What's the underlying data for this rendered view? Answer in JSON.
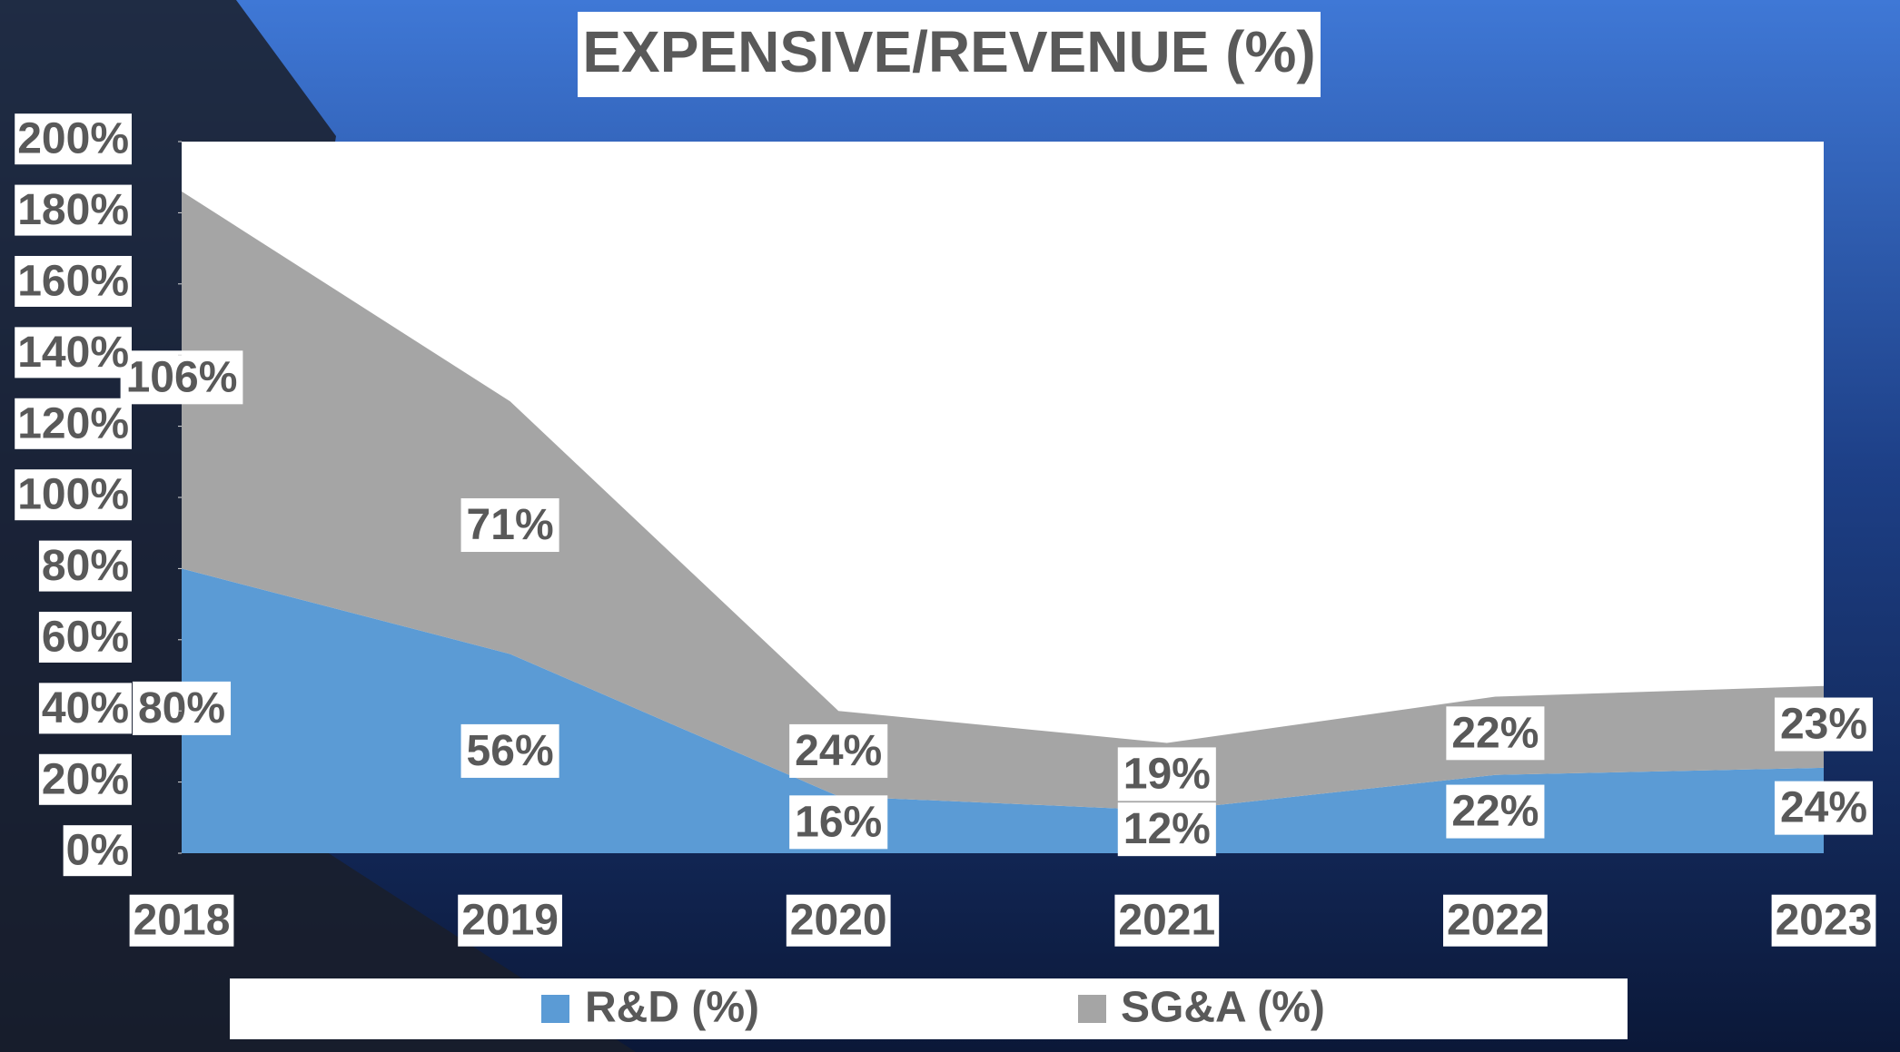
{
  "chart_data": {
    "type": "stacked_area",
    "title": "EXPENSIVE/REVENUE (%)",
    "categories": [
      "2018",
      "2019",
      "2020",
      "2021",
      "2022",
      "2023"
    ],
    "series": [
      {
        "name": "R&D (%)",
        "color": "#5b9bd5",
        "values": [
          80,
          56,
          16,
          12,
          22,
          24
        ],
        "value_labels": [
          "80%",
          "56%",
          "16%",
          "12%",
          "22%",
          "24%"
        ]
      },
      {
        "name": "SG&A (%)",
        "color": "#a5a5a5",
        "values": [
          106,
          71,
          24,
          19,
          22,
          23
        ],
        "value_labels": [
          "106%",
          "71%",
          "24%",
          "19%",
          "22%",
          "23%"
        ]
      }
    ],
    "ylim": [
      0,
      200
    ],
    "yticks": [
      {
        "value": 0,
        "label": "0%"
      },
      {
        "value": 20,
        "label": "20%"
      },
      {
        "value": 40,
        "label": "40%"
      },
      {
        "value": 60,
        "label": "60%"
      },
      {
        "value": 80,
        "label": "80%"
      },
      {
        "value": 100,
        "label": "100%"
      },
      {
        "value": 120,
        "label": "120%"
      },
      {
        "value": 140,
        "label": "140%"
      },
      {
        "value": 160,
        "label": "160%"
      },
      {
        "value": 180,
        "label": "180%"
      },
      {
        "value": 200,
        "label": "200%"
      }
    ],
    "legend": "bottom"
  }
}
